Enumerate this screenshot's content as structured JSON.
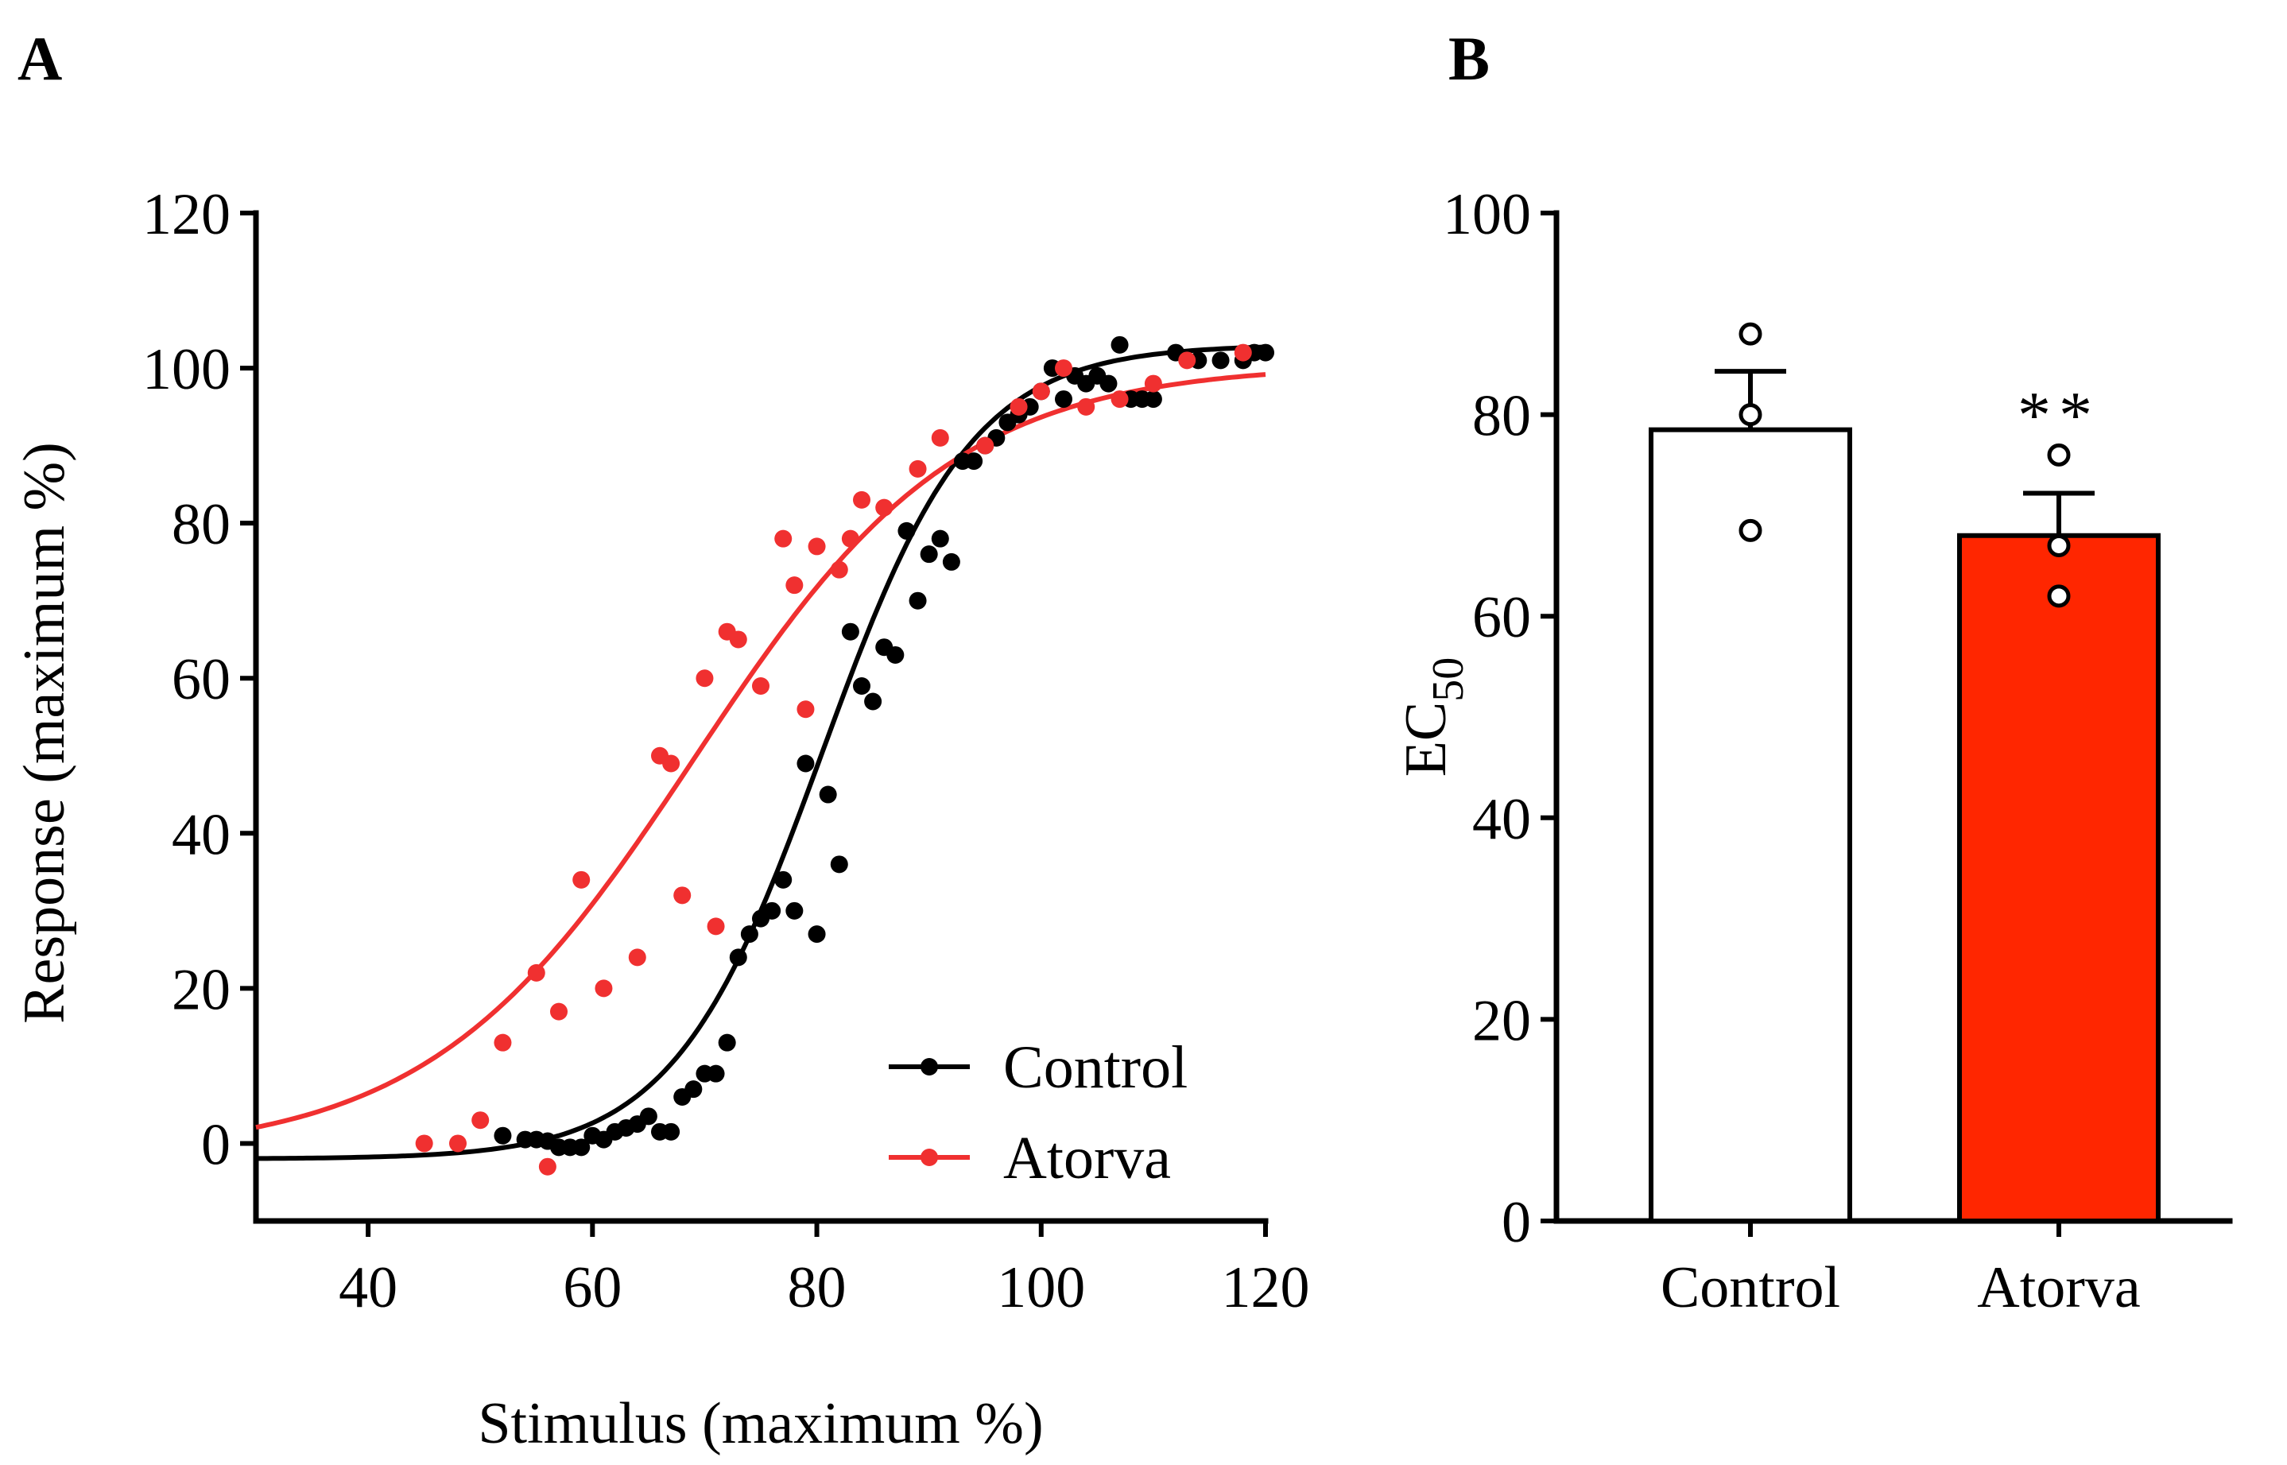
{
  "panels": {
    "a": "A",
    "b": "B"
  },
  "chart_data": [
    {
      "type": "scatter",
      "panel": "A",
      "title": "",
      "xlabel": "Stimulus (maximum %)",
      "ylabel": "Response (maximum %)",
      "xlim": [
        30,
        120
      ],
      "ylim": [
        -10,
        120
      ],
      "xticks": [
        40,
        60,
        80,
        100,
        120
      ],
      "yticks": [
        0,
        20,
        40,
        60,
        80,
        100,
        120
      ],
      "legend_position": "bottom-right",
      "series": [
        {
          "name": "Control",
          "color": "#000000",
          "fit": {
            "bottom": -2,
            "top": 103,
            "ec50": 80.5,
            "hill": 0.15
          },
          "points": [
            [
              52,
              1
            ],
            [
              54,
              0.5
            ],
            [
              55,
              0.5
            ],
            [
              56,
              0.3
            ],
            [
              57,
              -0.5
            ],
            [
              58,
              -0.5
            ],
            [
              59,
              -0.5
            ],
            [
              60,
              1
            ],
            [
              61,
              0.5
            ],
            [
              62,
              1.5
            ],
            [
              63,
              2
            ],
            [
              64,
              2.5
            ],
            [
              65,
              3.5
            ],
            [
              66,
              1.5
            ],
            [
              67,
              1.5
            ],
            [
              68,
              6
            ],
            [
              69,
              7
            ],
            [
              70,
              9
            ],
            [
              71,
              9
            ],
            [
              72,
              13
            ],
            [
              73,
              24
            ],
            [
              74,
              27
            ],
            [
              75,
              29
            ],
            [
              76,
              30
            ],
            [
              77,
              34
            ],
            [
              78,
              30
            ],
            [
              79,
              49
            ],
            [
              80,
              27
            ],
            [
              81,
              45
            ],
            [
              82,
              36
            ],
            [
              83,
              66
            ],
            [
              84,
              59
            ],
            [
              85,
              57
            ],
            [
              86,
              64
            ],
            [
              87,
              63
            ],
            [
              88,
              79
            ],
            [
              89,
              70
            ],
            [
              90,
              76
            ],
            [
              91,
              78
            ],
            [
              92,
              75
            ],
            [
              93,
              88
            ],
            [
              94,
              88
            ],
            [
              95,
              90
            ],
            [
              96,
              91
            ],
            [
              97,
              93
            ],
            [
              98,
              94
            ],
            [
              99,
              95
            ],
            [
              100,
              97
            ],
            [
              101,
              100
            ],
            [
              102,
              96
            ],
            [
              103,
              99
            ],
            [
              104,
              98
            ],
            [
              105,
              99
            ],
            [
              106,
              98
            ],
            [
              107,
              103
            ],
            [
              108,
              96
            ],
            [
              109,
              96
            ],
            [
              110,
              96
            ],
            [
              112,
              102
            ],
            [
              114,
              101
            ],
            [
              116,
              101
            ],
            [
              118,
              101
            ],
            [
              119,
              102
            ],
            [
              120,
              102
            ]
          ]
        },
        {
          "name": "Atorva",
          "color": "#f03030",
          "fit": {
            "bottom": -1.5,
            "top": 100.5,
            "ec50": 69,
            "hill": 0.085
          },
          "points": [
            [
              45,
              0
            ],
            [
              48,
              0
            ],
            [
              50,
              3
            ],
            [
              52,
              13
            ],
            [
              55,
              22
            ],
            [
              56,
              -3
            ],
            [
              57,
              17
            ],
            [
              59,
              34
            ],
            [
              61,
              20
            ],
            [
              64,
              24
            ],
            [
              66,
              50
            ],
            [
              67,
              49
            ],
            [
              68,
              32
            ],
            [
              70,
              60
            ],
            [
              71,
              28
            ],
            [
              72,
              66
            ],
            [
              73,
              65
            ],
            [
              75,
              59
            ],
            [
              77,
              78
            ],
            [
              78,
              72
            ],
            [
              79,
              56
            ],
            [
              80,
              77
            ],
            [
              82,
              74
            ],
            [
              83,
              78
            ],
            [
              84,
              83
            ],
            [
              86,
              82
            ],
            [
              89,
              87
            ],
            [
              91,
              91
            ],
            [
              95,
              90
            ],
            [
              98,
              95
            ],
            [
              100,
              97
            ],
            [
              102,
              100
            ],
            [
              104,
              95
            ],
            [
              107,
              96
            ],
            [
              110,
              98
            ],
            [
              113,
              101
            ],
            [
              118,
              102
            ]
          ]
        }
      ]
    },
    {
      "type": "bar",
      "panel": "B",
      "title": "",
      "xlabel": "",
      "ylabel_main": "EC",
      "ylabel_sub": "50",
      "ylim": [
        0,
        100
      ],
      "yticks": [
        0,
        20,
        40,
        60,
        80,
        100
      ],
      "categories": [
        "Control",
        "Atorva"
      ],
      "values": [
        78.5,
        68
      ],
      "errors": [
        5.8,
        4.2
      ],
      "colors": [
        "#ffffff",
        "#ff2600"
      ],
      "individual_points": [
        [
          88,
          80,
          68.5
        ],
        [
          76,
          67,
          62
        ]
      ],
      "annotations": [
        {
          "category": "Atorva",
          "text": "**"
        }
      ]
    }
  ]
}
